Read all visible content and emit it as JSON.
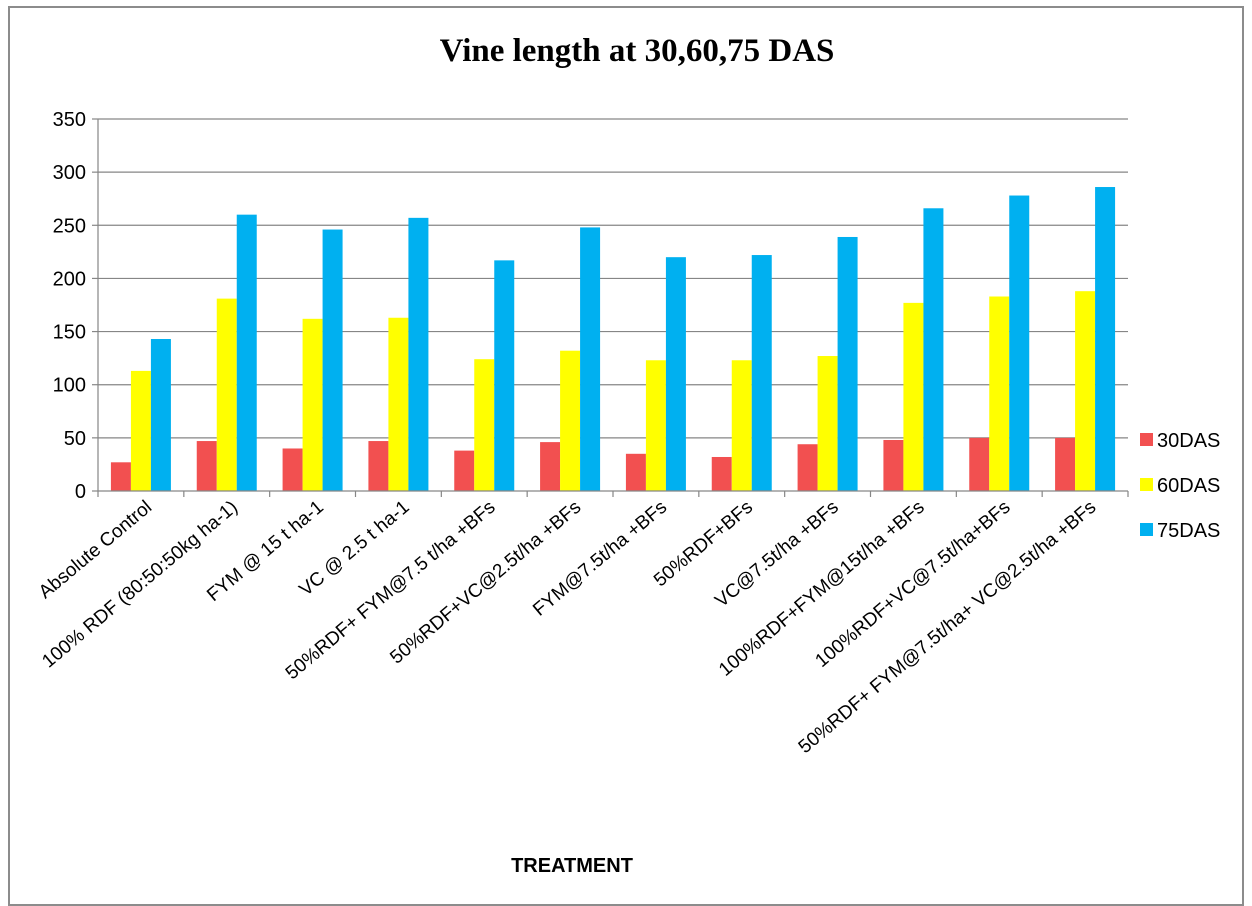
{
  "chart_data": {
    "type": "bar",
    "title": "Vine length at 30,60,75 DAS",
    "xlabel": "TREATMENT",
    "ylabel": "",
    "ylim": [
      0,
      350
    ],
    "yticks": [
      0,
      50,
      100,
      150,
      200,
      250,
      300,
      350
    ],
    "grid": true,
    "legend_position": "right",
    "categories": [
      "Absolute Control",
      "100% RDF (80:50:50kg ha-1)",
      "FYM @ 15 t ha-1",
      "VC @ 2.5 t ha-1",
      "50%RDF+ FYM@7.5 t/ha +BFs",
      "50%RDF+VC@2.5t/ha +BFs",
      "FYM@7.5t/ha +BFs",
      "50%RDF+BFs",
      "VC@7.5t/ha +BFs",
      "100%RDF+FYM@15t/ha +BFs",
      "100%RDF+VC@7.5t/ha+BFs",
      "50%RDF+  FYM@7.5t/ha+ VC@2.5t/ha +BFs"
    ],
    "series": [
      {
        "name": "30DAS",
        "color": "#f25050",
        "values": [
          27,
          47,
          40,
          47,
          38,
          46,
          35,
          32,
          44,
          48,
          50,
          50
        ]
      },
      {
        "name": "60DAS",
        "color": "#ffff00",
        "values": [
          113,
          181,
          162,
          163,
          124,
          132,
          123,
          123,
          127,
          177,
          183,
          188
        ]
      },
      {
        "name": "75DAS",
        "color": "#00b0f0",
        "values": [
          143,
          260,
          246,
          257,
          217,
          248,
          220,
          222,
          239,
          266,
          278,
          286
        ]
      }
    ]
  }
}
